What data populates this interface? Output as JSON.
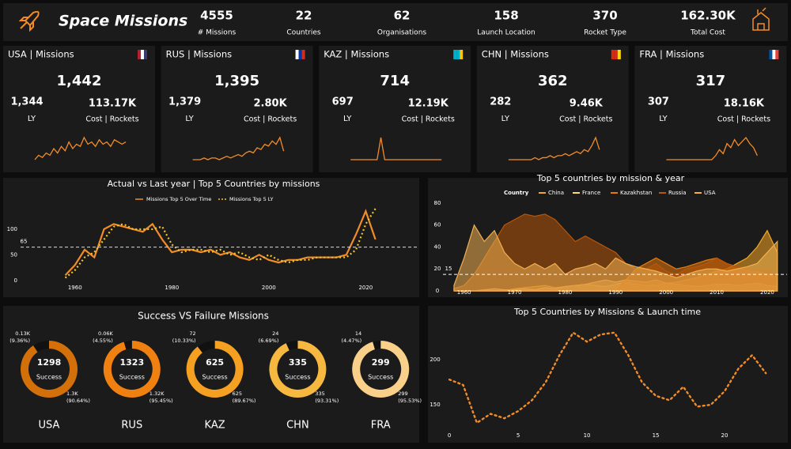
{
  "header": {
    "title": "Space Missions",
    "kpis": [
      {
        "value": "4555",
        "label": "# Missions"
      },
      {
        "value": "22",
        "label": "Countries"
      },
      {
        "value": "62",
        "label": "Organisations"
      },
      {
        "value": "158",
        "label": "Launch Location"
      },
      {
        "value": "370",
        "label": "Rocket Type"
      },
      {
        "value": "162.30K",
        "label": "Total Cost"
      }
    ]
  },
  "cards": [
    {
      "title": "USA | Missions",
      "value": "1,442",
      "ly_value": "1,344",
      "ly_label": "LY",
      "cost_value": "113.17K",
      "cost_label": "Cost | Rockets",
      "sparkline": [
        0,
        2,
        1,
        3,
        2,
        5,
        3,
        6,
        4,
        8,
        5,
        7,
        6,
        10,
        7,
        8,
        6,
        9,
        7,
        8,
        6,
        9,
        8,
        7,
        8
      ]
    },
    {
      "title": "RUS | Missions",
      "value": "1,395",
      "ly_value": "1,379",
      "ly_label": "LY",
      "cost_value": "2.80K",
      "cost_label": "Cost | Rockets",
      "sparkline": [
        1,
        1,
        1,
        2,
        1,
        2,
        2,
        1,
        2,
        3,
        2,
        3,
        4,
        3,
        5,
        6,
        5,
        8,
        7,
        10,
        9,
        12,
        10,
        14,
        6
      ]
    },
    {
      "title": "KAZ | Missions",
      "value": "714",
      "ly_value": "697",
      "ly_label": "LY",
      "cost_value": "12.19K",
      "cost_label": "Cost | Rockets",
      "sparkline": [
        1,
        1,
        1,
        1,
        1,
        1,
        1,
        1,
        12,
        1,
        1,
        1,
        1,
        1,
        1,
        1,
        1,
        1,
        1,
        1,
        1,
        1,
        1,
        1,
        1
      ]
    },
    {
      "title": "CHN | Missions",
      "value": "362",
      "ly_value": "282",
      "ly_label": "LY",
      "cost_value": "9.46K",
      "cost_label": "Cost | Rockets",
      "sparkline": [
        1,
        1,
        1,
        1,
        1,
        1,
        1,
        2,
        1,
        2,
        2,
        3,
        2,
        3,
        3,
        4,
        3,
        4,
        5,
        4,
        6,
        5,
        8,
        12,
        6
      ]
    },
    {
      "title": "FRA | Missions",
      "value": "317",
      "ly_value": "307",
      "ly_label": "LY",
      "cost_value": "18.16K",
      "cost_label": "Cost | Rockets",
      "sparkline": [
        0,
        0,
        0,
        0,
        0,
        0,
        0,
        0,
        0,
        0,
        0,
        0,
        0,
        2,
        5,
        3,
        8,
        6,
        10,
        7,
        9,
        11,
        8,
        6,
        2
      ]
    }
  ],
  "chart_data": [
    {
      "type": "line",
      "title": "Actual vs Last year | Top 5 Countries by missions",
      "x": [
        1958,
        1960,
        1962,
        1964,
        1966,
        1968,
        1970,
        1972,
        1974,
        1976,
        1978,
        1980,
        1982,
        1984,
        1986,
        1988,
        1990,
        1992,
        1994,
        1996,
        1998,
        2000,
        2002,
        2004,
        2006,
        2008,
        2010,
        2012,
        2014,
        2016,
        2018,
        2020,
        2022
      ],
      "series": [
        {
          "name": "Missions Top 5 Over Time",
          "color": "#f28c28",
          "style": "solid",
          "values": [
            10,
            30,
            60,
            45,
            100,
            110,
            105,
            100,
            95,
            110,
            80,
            55,
            60,
            60,
            55,
            60,
            50,
            55,
            45,
            40,
            50,
            40,
            35,
            40,
            40,
            45,
            45,
            45,
            45,
            50,
            90,
            135,
            80
          ]
        },
        {
          "name": "Missions Top 5 LY",
          "color": "#f7c52b",
          "style": "dotted",
          "values": [
            5,
            20,
            45,
            55,
            80,
            105,
            110,
            100,
            100,
            100,
            105,
            70,
            55,
            60,
            60,
            55,
            60,
            50,
            55,
            45,
            40,
            50,
            40,
            35,
            40,
            40,
            45,
            45,
            45,
            45,
            60,
            110,
            140
          ]
        }
      ],
      "xlim": [
        1954,
        2025
      ],
      "xticks": [
        1960,
        1980,
        2000,
        2020
      ],
      "ylim": [
        -5,
        150
      ],
      "yticks": [
        0,
        50,
        100
      ],
      "reference_line": 65
    },
    {
      "type": "area",
      "title": "Top 5 countries by mission & year",
      "legend_title": "Country",
      "x": [
        1958,
        1960,
        1962,
        1964,
        1966,
        1968,
        1970,
        1972,
        1974,
        1976,
        1978,
        1980,
        1982,
        1984,
        1986,
        1988,
        1990,
        1992,
        1994,
        1996,
        1998,
        2000,
        2002,
        2004,
        2006,
        2008,
        2010,
        2012,
        2014,
        2016,
        2018,
        2020,
        2022
      ],
      "series": [
        {
          "name": "China",
          "color": "#f5a623",
          "values": [
            0,
            0,
            0,
            0,
            0,
            0,
            2,
            3,
            4,
            5,
            3,
            4,
            5,
            6,
            5,
            4,
            6,
            8,
            6,
            5,
            5,
            7,
            8,
            10,
            12,
            15,
            18,
            20,
            25,
            30,
            40,
            55,
            35
          ]
        },
        {
          "name": "France",
          "color": "#ffd580",
          "values": [
            0,
            0,
            0,
            1,
            2,
            1,
            1,
            2,
            1,
            3,
            2,
            4,
            5,
            6,
            8,
            10,
            8,
            10,
            9,
            8,
            10,
            7,
            6,
            5,
            4,
            5,
            6,
            6,
            5,
            6,
            7,
            5,
            4
          ]
        },
        {
          "name": "Kazakhstan",
          "color": "#e8790c",
          "values": [
            0,
            0,
            0,
            0,
            0,
            0,
            0,
            0,
            0,
            0,
            0,
            0,
            0,
            0,
            0,
            0,
            0,
            10,
            20,
            25,
            30,
            25,
            20,
            22,
            25,
            28,
            30,
            25,
            22,
            20,
            18,
            15,
            12
          ]
        },
        {
          "name": "Russia",
          "color": "#b8560a",
          "values": [
            2,
            5,
            15,
            30,
            45,
            60,
            65,
            70,
            68,
            70,
            65,
            55,
            45,
            50,
            45,
            40,
            35,
            25,
            20,
            20,
            25,
            18,
            15,
            20,
            22,
            25,
            30,
            25,
            22,
            20,
            18,
            20,
            15
          ]
        },
        {
          "name": "USA",
          "color": "#f0b050",
          "values": [
            5,
            30,
            60,
            45,
            55,
            35,
            25,
            20,
            25,
            20,
            25,
            15,
            20,
            22,
            25,
            20,
            30,
            25,
            22,
            20,
            18,
            15,
            12,
            15,
            18,
            20,
            20,
            18,
            20,
            22,
            25,
            35,
            45
          ]
        }
      ],
      "xlim": [
        1953,
        2024
      ],
      "xticks": [
        1960,
        1970,
        1980,
        1990,
        2000,
        2010,
        2020
      ],
      "ylim": [
        0,
        85
      ],
      "yticks": [
        0,
        20,
        40,
        60,
        80
      ],
      "reference_line": 15
    },
    {
      "type": "donut",
      "title": "Success VS Failure Missions",
      "items": [
        {
          "name": "USA",
          "center_value": "1298",
          "center_label": "Success",
          "values": [
            90.64,
            9.36
          ],
          "value_labels": [
            "(90.64%)",
            "(9.36%)"
          ],
          "count_labels": [
            "1.3K",
            "0.13K"
          ],
          "colors": [
            "#d4700a",
            "#111111"
          ]
        },
        {
          "name": "RUS",
          "center_value": "1323",
          "center_label": "Success",
          "values": [
            95.45,
            4.55
          ],
          "value_labels": [
            "(95.45%)",
            "(4.55%)"
          ],
          "count_labels": [
            "1.32K",
            "0.06K"
          ],
          "colors": [
            "#f08010",
            "#111111"
          ]
        },
        {
          "name": "KAZ",
          "center_value": "625",
          "center_label": "Success",
          "values": [
            89.67,
            10.33
          ],
          "value_labels": [
            "(89.67%)",
            "(10.33%)"
          ],
          "count_labels": [
            "625",
            "72"
          ],
          "colors": [
            "#f5a020",
            "#111111"
          ]
        },
        {
          "name": "CHN",
          "center_value": "335",
          "center_label": "Success",
          "values": [
            93.31,
            6.69
          ],
          "value_labels": [
            "(93.31%)",
            "(6.69%)"
          ],
          "count_labels": [
            "335",
            "24"
          ],
          "colors": [
            "#f7b840",
            "#111111"
          ]
        },
        {
          "name": "FRA",
          "center_value": "299",
          "center_label": "Success",
          "values": [
            95.53,
            4.47
          ],
          "value_labels": [
            "(95.53%)",
            "(4.47%)"
          ],
          "count_labels": [
            "299",
            "14"
          ],
          "colors": [
            "#f9d08a",
            "#111111"
          ]
        }
      ]
    },
    {
      "type": "line",
      "title": "Top 5 Countries by Missions & Launch time",
      "x": [
        0,
        1,
        2,
        3,
        4,
        5,
        6,
        7,
        8,
        9,
        10,
        11,
        12,
        13,
        14,
        15,
        16,
        17,
        18,
        19,
        20,
        21,
        22,
        23
      ],
      "series": [
        {
          "color": "#f28c28",
          "style": "dotted",
          "values": [
            178,
            172,
            130,
            140,
            135,
            143,
            155,
            175,
            205,
            230,
            220,
            228,
            230,
            205,
            175,
            160,
            155,
            170,
            148,
            150,
            165,
            190,
            205,
            185
          ]
        }
      ],
      "xlim": [
        -1.5,
        24.5
      ],
      "xticks": [
        0,
        5,
        10,
        15,
        20
      ],
      "ylim": [
        115,
        240
      ],
      "yticks": [
        150,
        200
      ]
    }
  ]
}
